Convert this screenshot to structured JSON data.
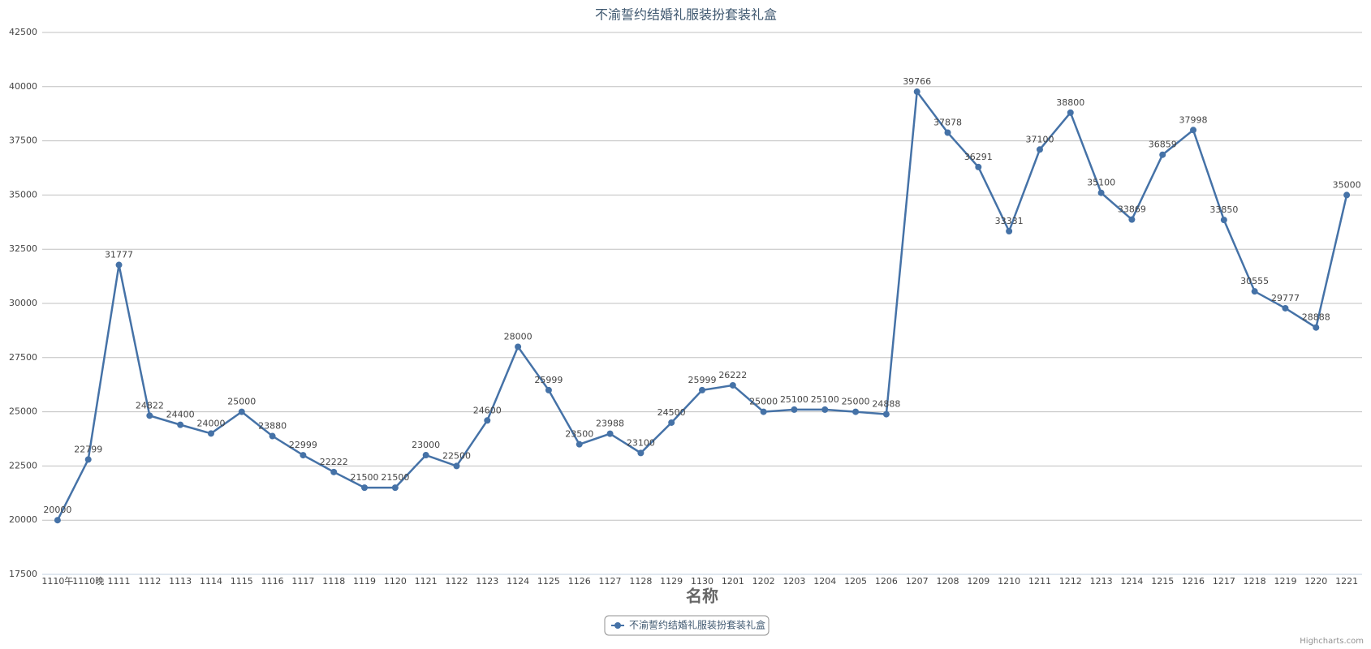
{
  "chart_data": {
    "type": "line",
    "title": "不渝誓约结婚礼服装扮套装礼盒",
    "x_label": "名称",
    "credits": "Highcharts.com",
    "categories": [
      "1110午",
      "1110晚",
      "1111",
      "1112",
      "1113",
      "1114",
      "1115",
      "1116",
      "1117",
      "1118",
      "1119",
      "1120",
      "1121",
      "1122",
      "1123",
      "1124",
      "1125",
      "1126",
      "1127",
      "1128",
      "1129",
      "1130",
      "1201",
      "1202",
      "1203",
      "1204",
      "1205",
      "1206",
      "1207",
      "1208",
      "1209",
      "1210",
      "1211",
      "1212",
      "1213",
      "1214",
      "1215",
      "1216",
      "1217",
      "1218",
      "1219",
      "1220",
      "1221"
    ],
    "series": [
      {
        "name": "不渝誓约结婚礼服装扮套装礼盒",
        "color": "#4572a7",
        "values": [
          20000,
          22799,
          31777,
          24822,
          24400,
          24000,
          25000,
          23880,
          22999,
          22222,
          21500,
          21500,
          23000,
          22500,
          24600,
          28000,
          25999,
          23500,
          23988,
          23100,
          24500,
          25999,
          26222,
          25000,
          25100,
          25100,
          25000,
          24888,
          39766,
          37878,
          36291,
          33331,
          37100,
          38800,
          35100,
          33869,
          36859,
          37998,
          33850,
          30555,
          29777,
          28888,
          35000
        ]
      }
    ],
    "ylim": [
      17500,
      42500
    ],
    "yticks": [
      17500,
      20000,
      22500,
      25000,
      27500,
      30000,
      32500,
      35000,
      37500,
      40000,
      42500
    ],
    "grid": true,
    "legend": "bottom"
  }
}
